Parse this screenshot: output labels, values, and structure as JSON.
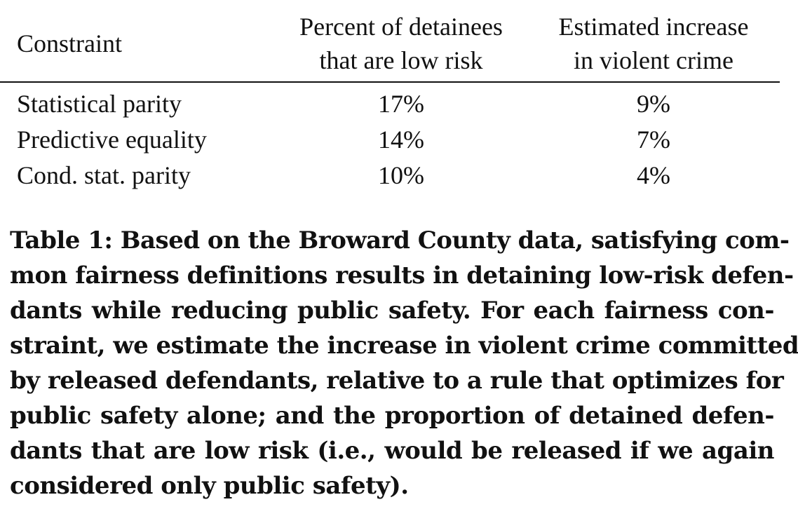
{
  "table": {
    "headers": {
      "constraint": "Constraint",
      "percent_low_risk": [
        "Percent of detainees",
        "that are low risk"
      ],
      "violent_crime": [
        "Estimated increase",
        "in violent crime"
      ]
    },
    "rows": [
      {
        "constraint": "Statistical parity",
        "percent_low_risk": "17%",
        "violent_crime": "9%"
      },
      {
        "constraint": "Predictive equality",
        "percent_low_risk": "14%",
        "violent_crime": "7%"
      },
      {
        "constraint": "Cond. stat. parity",
        "percent_low_risk": "10%",
        "violent_crime": "4%"
      }
    ]
  },
  "caption": {
    "lines": [
      "Table 1: Based on the Broward County data, satisfying com-",
      "mon fairness definitions results in detaining low-risk defen-",
      "dants while reducing public safety.  For each fairness con-",
      "straint, we estimate the increase in violent crime committed",
      "by released defendants, relative to a rule that optimizes for",
      "public safety alone; and the proportion of detained defen-",
      "dants that are low risk (i.e., would be released if we again",
      "considered only public safety)."
    ]
  }
}
